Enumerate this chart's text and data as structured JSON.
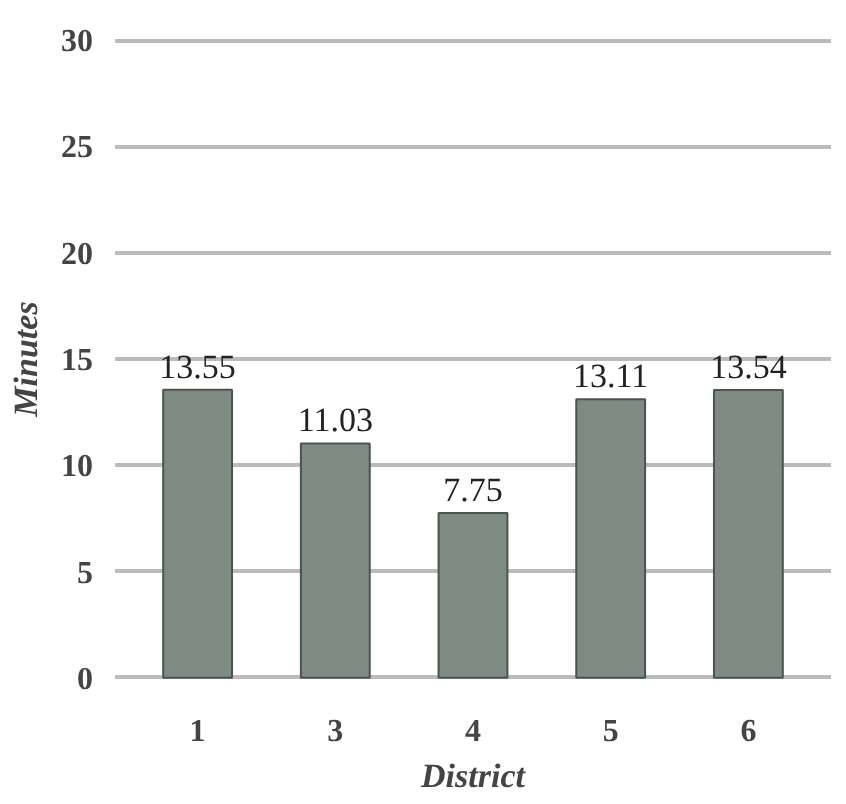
{
  "chart_data": {
    "type": "bar",
    "xlabel": "District",
    "ylabel": "Minutes",
    "categories": [
      "1",
      "3",
      "4",
      "5",
      "6"
    ],
    "values": [
      13.55,
      11.03,
      7.75,
      13.11,
      13.54
    ],
    "color": "#7d8b82",
    "ylim": [
      0,
      30
    ],
    "yticks": [
      0,
      5,
      10,
      15,
      20,
      25,
      30
    ],
    "grid": "y",
    "data_labels": true
  }
}
